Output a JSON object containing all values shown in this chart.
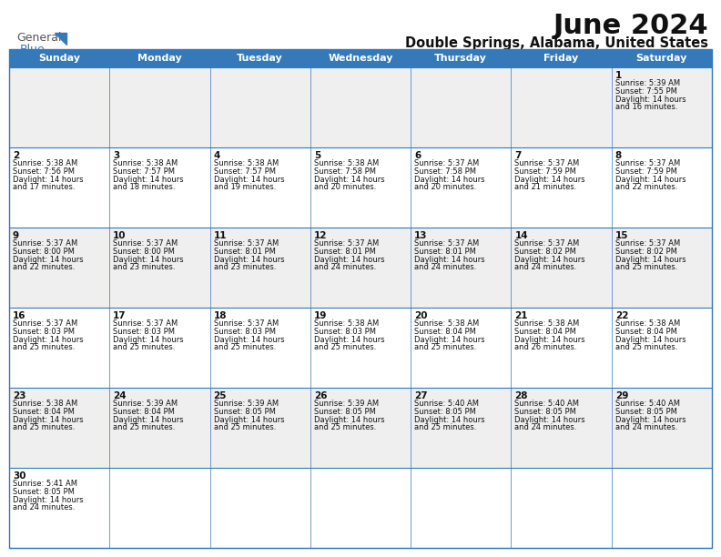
{
  "title": "June 2024",
  "subtitle": "Double Springs, Alabama, United States",
  "header_color": "#3579B8",
  "header_text_color": "#FFFFFF",
  "days_of_week": [
    "Sunday",
    "Monday",
    "Tuesday",
    "Wednesday",
    "Thursday",
    "Friday",
    "Saturday"
  ],
  "row_bg_even": "#EFEFEF",
  "row_bg_odd": "#FFFFFF",
  "border_color": "#3579B8",
  "text_color": "#111111",
  "logo_general_color": "#555555",
  "logo_blue_color": "#3579B8",
  "calendar": [
    [
      {
        "day": "",
        "sunrise": "",
        "sunset": "",
        "daylight": ""
      },
      {
        "day": "",
        "sunrise": "",
        "sunset": "",
        "daylight": ""
      },
      {
        "day": "",
        "sunrise": "",
        "sunset": "",
        "daylight": ""
      },
      {
        "day": "",
        "sunrise": "",
        "sunset": "",
        "daylight": ""
      },
      {
        "day": "",
        "sunrise": "",
        "sunset": "",
        "daylight": ""
      },
      {
        "day": "",
        "sunrise": "",
        "sunset": "",
        "daylight": ""
      },
      {
        "day": "1",
        "sunrise": "5:39 AM",
        "sunset": "7:55 PM",
        "daylight": "14 hours and 16 minutes."
      }
    ],
    [
      {
        "day": "2",
        "sunrise": "5:38 AM",
        "sunset": "7:56 PM",
        "daylight": "14 hours and 17 minutes."
      },
      {
        "day": "3",
        "sunrise": "5:38 AM",
        "sunset": "7:57 PM",
        "daylight": "14 hours and 18 minutes."
      },
      {
        "day": "4",
        "sunrise": "5:38 AM",
        "sunset": "7:57 PM",
        "daylight": "14 hours and 19 minutes."
      },
      {
        "day": "5",
        "sunrise": "5:38 AM",
        "sunset": "7:58 PM",
        "daylight": "14 hours and 20 minutes."
      },
      {
        "day": "6",
        "sunrise": "5:37 AM",
        "sunset": "7:58 PM",
        "daylight": "14 hours and 20 minutes."
      },
      {
        "day": "7",
        "sunrise": "5:37 AM",
        "sunset": "7:59 PM",
        "daylight": "14 hours and 21 minutes."
      },
      {
        "day": "8",
        "sunrise": "5:37 AM",
        "sunset": "7:59 PM",
        "daylight": "14 hours and 22 minutes."
      }
    ],
    [
      {
        "day": "9",
        "sunrise": "5:37 AM",
        "sunset": "8:00 PM",
        "daylight": "14 hours and 22 minutes."
      },
      {
        "day": "10",
        "sunrise": "5:37 AM",
        "sunset": "8:00 PM",
        "daylight": "14 hours and 23 minutes."
      },
      {
        "day": "11",
        "sunrise": "5:37 AM",
        "sunset": "8:01 PM",
        "daylight": "14 hours and 23 minutes."
      },
      {
        "day": "12",
        "sunrise": "5:37 AM",
        "sunset": "8:01 PM",
        "daylight": "14 hours and 24 minutes."
      },
      {
        "day": "13",
        "sunrise": "5:37 AM",
        "sunset": "8:01 PM",
        "daylight": "14 hours and 24 minutes."
      },
      {
        "day": "14",
        "sunrise": "5:37 AM",
        "sunset": "8:02 PM",
        "daylight": "14 hours and 24 minutes."
      },
      {
        "day": "15",
        "sunrise": "5:37 AM",
        "sunset": "8:02 PM",
        "daylight": "14 hours and 25 minutes."
      }
    ],
    [
      {
        "day": "16",
        "sunrise": "5:37 AM",
        "sunset": "8:03 PM",
        "daylight": "14 hours and 25 minutes."
      },
      {
        "day": "17",
        "sunrise": "5:37 AM",
        "sunset": "8:03 PM",
        "daylight": "14 hours and 25 minutes."
      },
      {
        "day": "18",
        "sunrise": "5:37 AM",
        "sunset": "8:03 PM",
        "daylight": "14 hours and 25 minutes."
      },
      {
        "day": "19",
        "sunrise": "5:38 AM",
        "sunset": "8:03 PM",
        "daylight": "14 hours and 25 minutes."
      },
      {
        "day": "20",
        "sunrise": "5:38 AM",
        "sunset": "8:04 PM",
        "daylight": "14 hours and 25 minutes."
      },
      {
        "day": "21",
        "sunrise": "5:38 AM",
        "sunset": "8:04 PM",
        "daylight": "14 hours and 26 minutes."
      },
      {
        "day": "22",
        "sunrise": "5:38 AM",
        "sunset": "8:04 PM",
        "daylight": "14 hours and 25 minutes."
      }
    ],
    [
      {
        "day": "23",
        "sunrise": "5:38 AM",
        "sunset": "8:04 PM",
        "daylight": "14 hours and 25 minutes."
      },
      {
        "day": "24",
        "sunrise": "5:39 AM",
        "sunset": "8:04 PM",
        "daylight": "14 hours and 25 minutes."
      },
      {
        "day": "25",
        "sunrise": "5:39 AM",
        "sunset": "8:05 PM",
        "daylight": "14 hours and 25 minutes."
      },
      {
        "day": "26",
        "sunrise": "5:39 AM",
        "sunset": "8:05 PM",
        "daylight": "14 hours and 25 minutes."
      },
      {
        "day": "27",
        "sunrise": "5:40 AM",
        "sunset": "8:05 PM",
        "daylight": "14 hours and 25 minutes."
      },
      {
        "day": "28",
        "sunrise": "5:40 AM",
        "sunset": "8:05 PM",
        "daylight": "14 hours and 24 minutes."
      },
      {
        "day": "29",
        "sunrise": "5:40 AM",
        "sunset": "8:05 PM",
        "daylight": "14 hours and 24 minutes."
      }
    ],
    [
      {
        "day": "30",
        "sunrise": "5:41 AM",
        "sunset": "8:05 PM",
        "daylight": "14 hours and 24 minutes."
      },
      {
        "day": "",
        "sunrise": "",
        "sunset": "",
        "daylight": ""
      },
      {
        "day": "",
        "sunrise": "",
        "sunset": "",
        "daylight": ""
      },
      {
        "day": "",
        "sunrise": "",
        "sunset": "",
        "daylight": ""
      },
      {
        "day": "",
        "sunrise": "",
        "sunset": "",
        "daylight": ""
      },
      {
        "day": "",
        "sunrise": "",
        "sunset": "",
        "daylight": ""
      },
      {
        "day": "",
        "sunrise": "",
        "sunset": "",
        "daylight": ""
      }
    ]
  ]
}
